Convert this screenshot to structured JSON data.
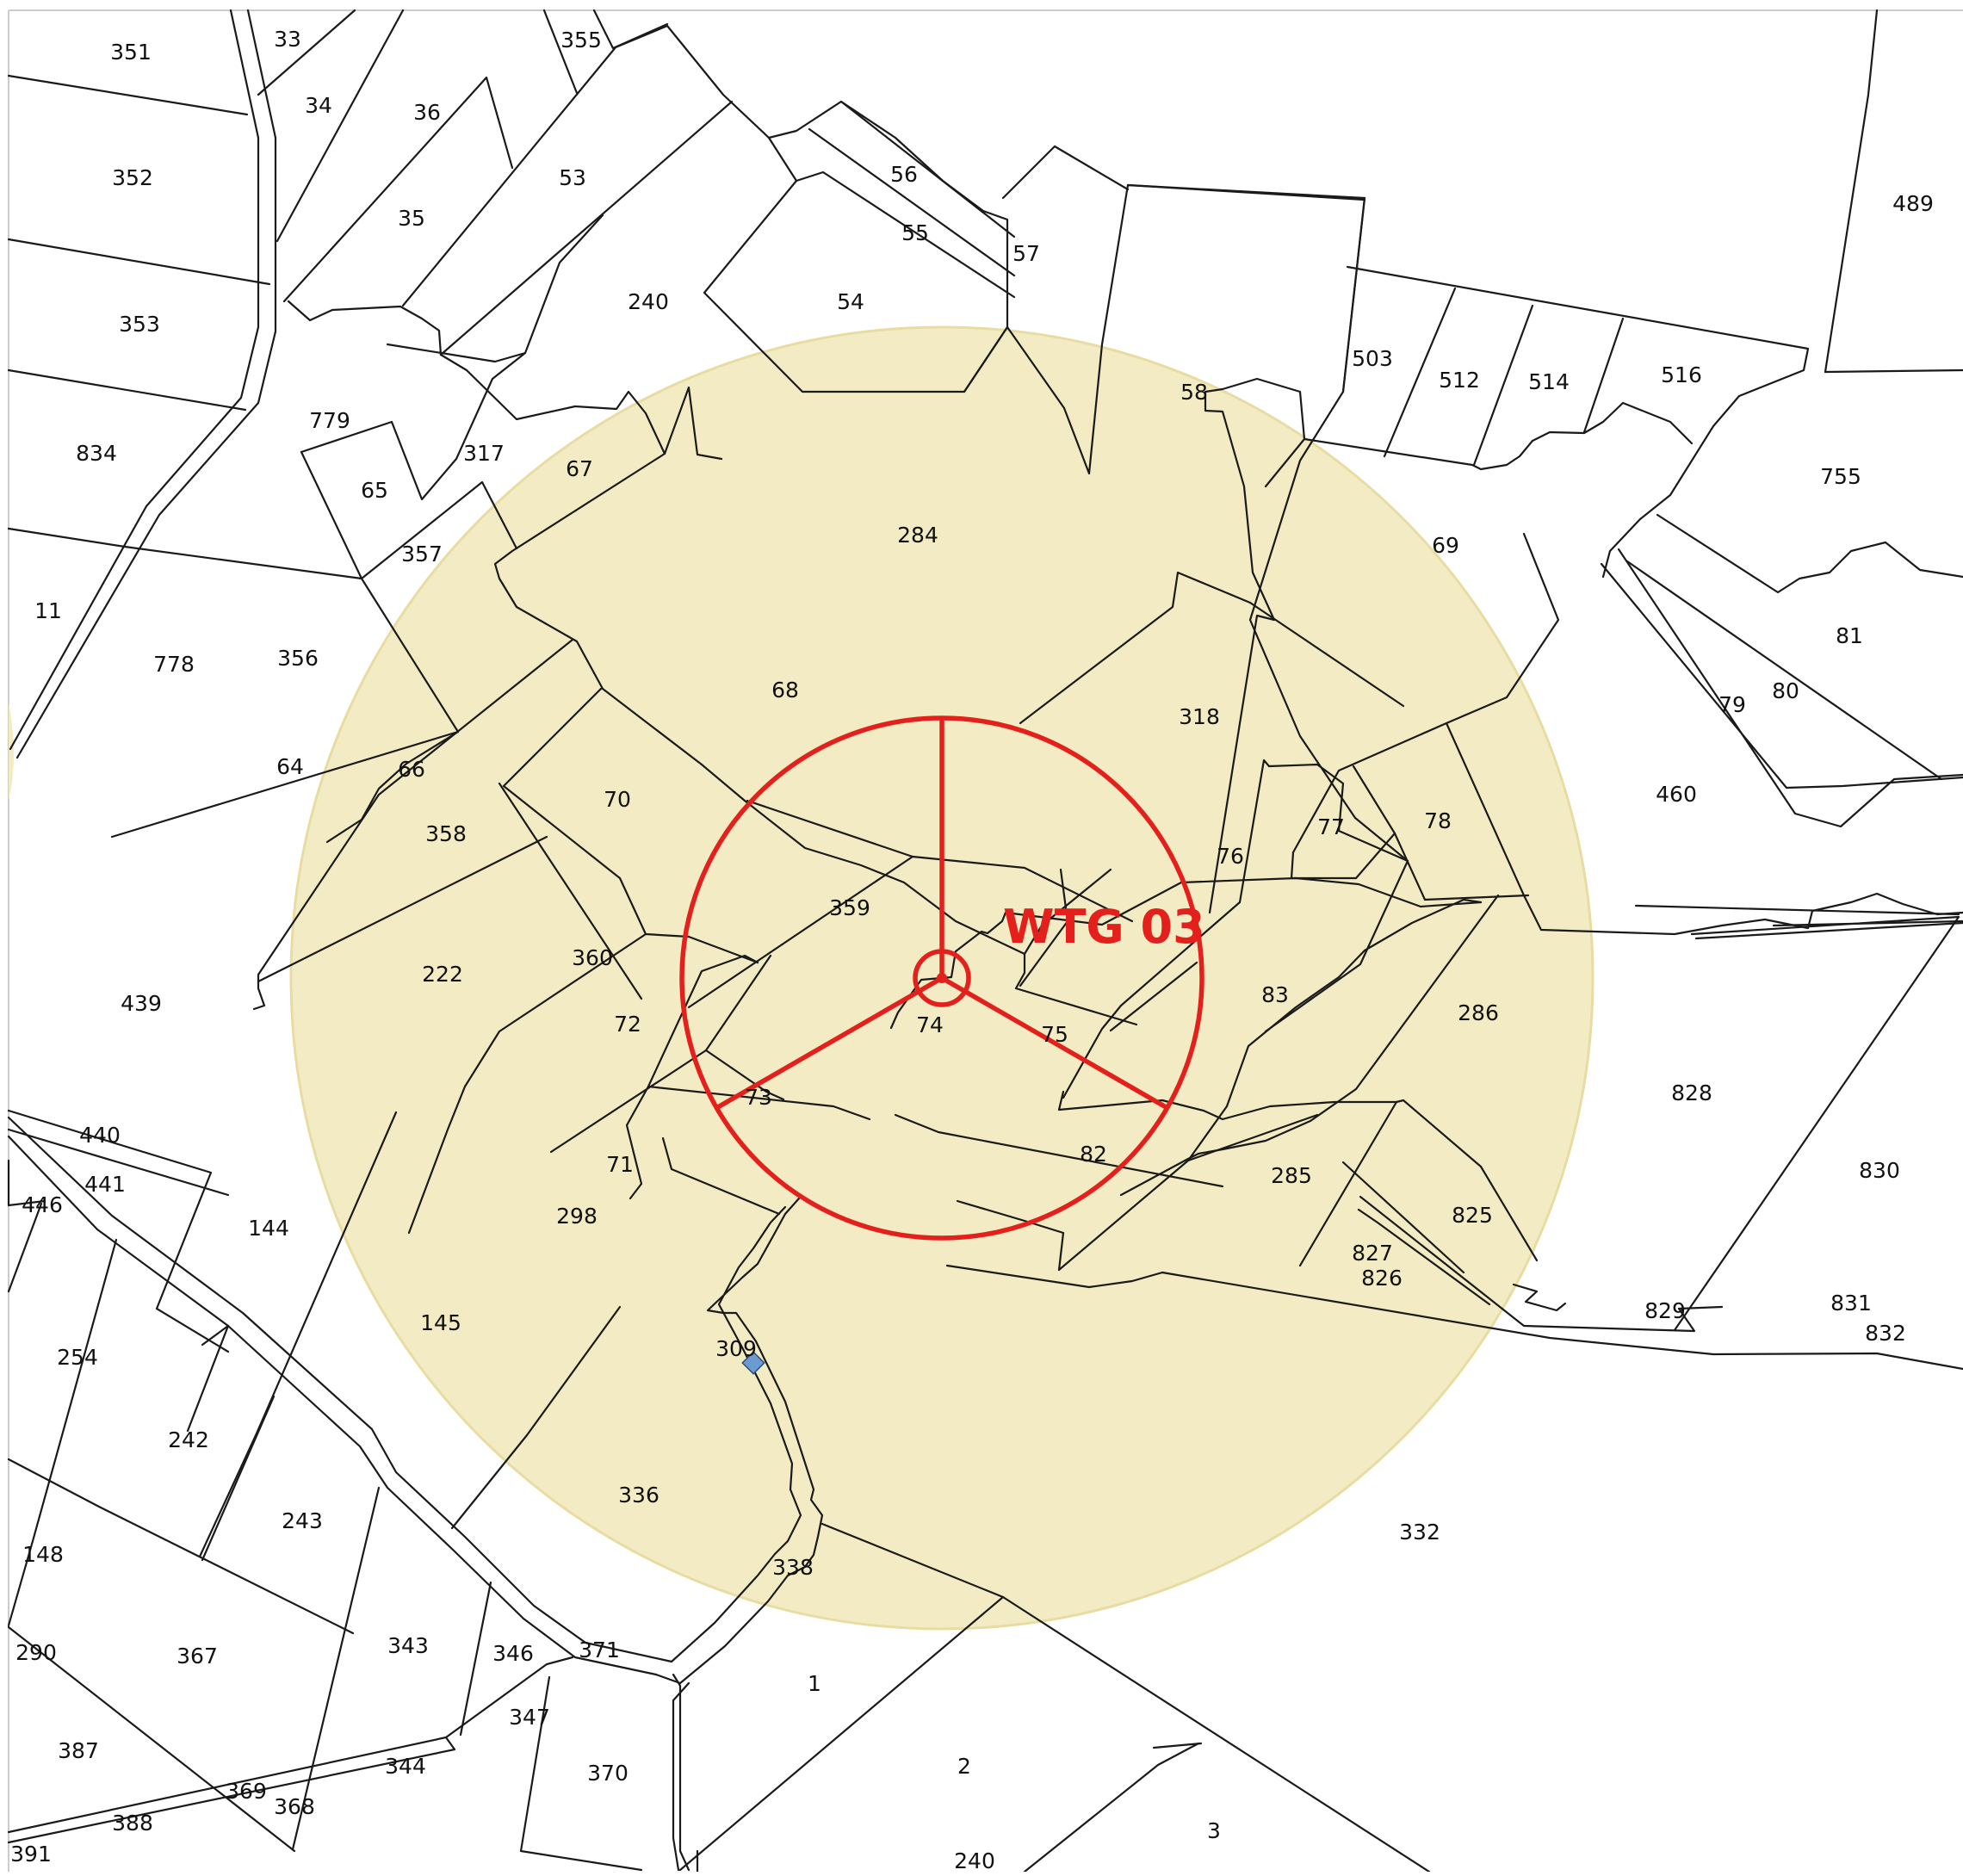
{
  "map": {
    "colors": {
      "buffer_fill": "#f3ebc3",
      "buffer_stroke": "#e9dca3",
      "turbine": "#e3201b",
      "marker": "#6c9bd2",
      "boundary": "#1a1a1a",
      "background": "#ffffff"
    },
    "turbine": {
      "label": "WTG 03",
      "icon": "wind-turbine-rotor-icon"
    },
    "marker_icon": "diamond-marker-icon",
    "parcels": [
      "351",
      "33",
      "355",
      "34",
      "36",
      "352",
      "35",
      "53",
      "56",
      "55",
      "57",
      "489",
      "353",
      "240",
      "54",
      "58",
      "503",
      "512",
      "514",
      "516",
      "834",
      "779",
      "317",
      "65",
      "67",
      "284",
      "755",
      "357",
      "69",
      "11",
      "778",
      "356",
      "68",
      "318",
      "81",
      "79",
      "80",
      "64",
      "66",
      "70",
      "359",
      "460",
      "358",
      "77",
      "78",
      "76",
      "222",
      "360",
      "439",
      "72",
      "74",
      "75",
      "83",
      "286",
      "73",
      "828",
      "440",
      "441",
      "446",
      "71",
      "82",
      "830",
      "144",
      "298",
      "285",
      "825",
      "827",
      "826",
      "831",
      "829",
      "832",
      "145",
      "254",
      "309",
      "242",
      "336",
      "332",
      "243",
      "148",
      "338",
      "290",
      "367",
      "343",
      "346",
      "371",
      "1",
      "347",
      "387",
      "344",
      "370",
      "2",
      "369",
      "368",
      "388",
      "391",
      "3",
      "240"
    ]
  }
}
